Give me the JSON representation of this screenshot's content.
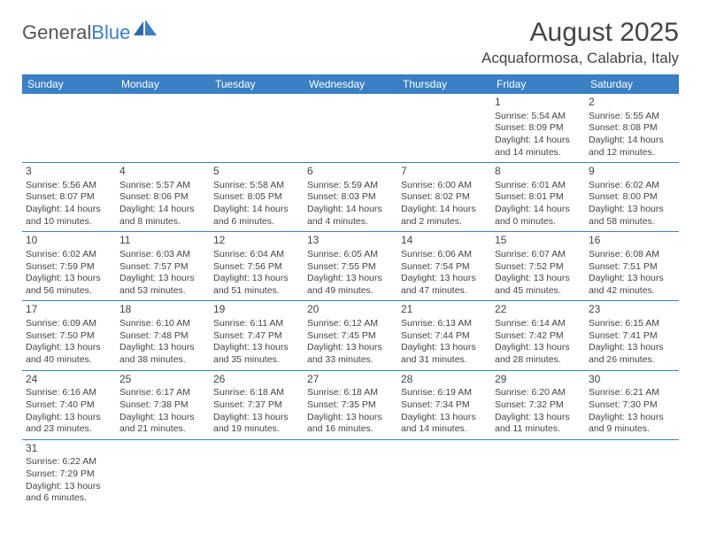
{
  "brand": {
    "part1": "General",
    "part2": "Blue"
  },
  "title": "August 2025",
  "location": "Acquaformosa, Calabria, Italy",
  "colors": {
    "primary": "#3b7fc4",
    "text": "#444444",
    "background": "#ffffff"
  },
  "daysOfWeek": [
    "Sunday",
    "Monday",
    "Tuesday",
    "Wednesday",
    "Thursday",
    "Friday",
    "Saturday"
  ],
  "weeks": [
    [
      null,
      null,
      null,
      null,
      null,
      {
        "num": "1",
        "sunrise": "Sunrise: 5:54 AM",
        "sunset": "Sunset: 8:09 PM",
        "daylight": "Daylight: 14 hours and 14 minutes."
      },
      {
        "num": "2",
        "sunrise": "Sunrise: 5:55 AM",
        "sunset": "Sunset: 8:08 PM",
        "daylight": "Daylight: 14 hours and 12 minutes."
      }
    ],
    [
      {
        "num": "3",
        "sunrise": "Sunrise: 5:56 AM",
        "sunset": "Sunset: 8:07 PM",
        "daylight": "Daylight: 14 hours and 10 minutes."
      },
      {
        "num": "4",
        "sunrise": "Sunrise: 5:57 AM",
        "sunset": "Sunset: 8:06 PM",
        "daylight": "Daylight: 14 hours and 8 minutes."
      },
      {
        "num": "5",
        "sunrise": "Sunrise: 5:58 AM",
        "sunset": "Sunset: 8:05 PM",
        "daylight": "Daylight: 14 hours and 6 minutes."
      },
      {
        "num": "6",
        "sunrise": "Sunrise: 5:59 AM",
        "sunset": "Sunset: 8:03 PM",
        "daylight": "Daylight: 14 hours and 4 minutes."
      },
      {
        "num": "7",
        "sunrise": "Sunrise: 6:00 AM",
        "sunset": "Sunset: 8:02 PM",
        "daylight": "Daylight: 14 hours and 2 minutes."
      },
      {
        "num": "8",
        "sunrise": "Sunrise: 6:01 AM",
        "sunset": "Sunset: 8:01 PM",
        "daylight": "Daylight: 14 hours and 0 minutes."
      },
      {
        "num": "9",
        "sunrise": "Sunrise: 6:02 AM",
        "sunset": "Sunset: 8:00 PM",
        "daylight": "Daylight: 13 hours and 58 minutes."
      }
    ],
    [
      {
        "num": "10",
        "sunrise": "Sunrise: 6:02 AM",
        "sunset": "Sunset: 7:59 PM",
        "daylight": "Daylight: 13 hours and 56 minutes."
      },
      {
        "num": "11",
        "sunrise": "Sunrise: 6:03 AM",
        "sunset": "Sunset: 7:57 PM",
        "daylight": "Daylight: 13 hours and 53 minutes."
      },
      {
        "num": "12",
        "sunrise": "Sunrise: 6:04 AM",
        "sunset": "Sunset: 7:56 PM",
        "daylight": "Daylight: 13 hours and 51 minutes."
      },
      {
        "num": "13",
        "sunrise": "Sunrise: 6:05 AM",
        "sunset": "Sunset: 7:55 PM",
        "daylight": "Daylight: 13 hours and 49 minutes."
      },
      {
        "num": "14",
        "sunrise": "Sunrise: 6:06 AM",
        "sunset": "Sunset: 7:54 PM",
        "daylight": "Daylight: 13 hours and 47 minutes."
      },
      {
        "num": "15",
        "sunrise": "Sunrise: 6:07 AM",
        "sunset": "Sunset: 7:52 PM",
        "daylight": "Daylight: 13 hours and 45 minutes."
      },
      {
        "num": "16",
        "sunrise": "Sunrise: 6:08 AM",
        "sunset": "Sunset: 7:51 PM",
        "daylight": "Daylight: 13 hours and 42 minutes."
      }
    ],
    [
      {
        "num": "17",
        "sunrise": "Sunrise: 6:09 AM",
        "sunset": "Sunset: 7:50 PM",
        "daylight": "Daylight: 13 hours and 40 minutes."
      },
      {
        "num": "18",
        "sunrise": "Sunrise: 6:10 AM",
        "sunset": "Sunset: 7:48 PM",
        "daylight": "Daylight: 13 hours and 38 minutes."
      },
      {
        "num": "19",
        "sunrise": "Sunrise: 6:11 AM",
        "sunset": "Sunset: 7:47 PM",
        "daylight": "Daylight: 13 hours and 35 minutes."
      },
      {
        "num": "20",
        "sunrise": "Sunrise: 6:12 AM",
        "sunset": "Sunset: 7:45 PM",
        "daylight": "Daylight: 13 hours and 33 minutes."
      },
      {
        "num": "21",
        "sunrise": "Sunrise: 6:13 AM",
        "sunset": "Sunset: 7:44 PM",
        "daylight": "Daylight: 13 hours and 31 minutes."
      },
      {
        "num": "22",
        "sunrise": "Sunrise: 6:14 AM",
        "sunset": "Sunset: 7:42 PM",
        "daylight": "Daylight: 13 hours and 28 minutes."
      },
      {
        "num": "23",
        "sunrise": "Sunrise: 6:15 AM",
        "sunset": "Sunset: 7:41 PM",
        "daylight": "Daylight: 13 hours and 26 minutes."
      }
    ],
    [
      {
        "num": "24",
        "sunrise": "Sunrise: 6:16 AM",
        "sunset": "Sunset: 7:40 PM",
        "daylight": "Daylight: 13 hours and 23 minutes."
      },
      {
        "num": "25",
        "sunrise": "Sunrise: 6:17 AM",
        "sunset": "Sunset: 7:38 PM",
        "daylight": "Daylight: 13 hours and 21 minutes."
      },
      {
        "num": "26",
        "sunrise": "Sunrise: 6:18 AM",
        "sunset": "Sunset: 7:37 PM",
        "daylight": "Daylight: 13 hours and 19 minutes."
      },
      {
        "num": "27",
        "sunrise": "Sunrise: 6:18 AM",
        "sunset": "Sunset: 7:35 PM",
        "daylight": "Daylight: 13 hours and 16 minutes."
      },
      {
        "num": "28",
        "sunrise": "Sunrise: 6:19 AM",
        "sunset": "Sunset: 7:34 PM",
        "daylight": "Daylight: 13 hours and 14 minutes."
      },
      {
        "num": "29",
        "sunrise": "Sunrise: 6:20 AM",
        "sunset": "Sunset: 7:32 PM",
        "daylight": "Daylight: 13 hours and 11 minutes."
      },
      {
        "num": "30",
        "sunrise": "Sunrise: 6:21 AM",
        "sunset": "Sunset: 7:30 PM",
        "daylight": "Daylight: 13 hours and 9 minutes."
      }
    ],
    [
      {
        "num": "31",
        "sunrise": "Sunrise: 6:22 AM",
        "sunset": "Sunset: 7:29 PM",
        "daylight": "Daylight: 13 hours and 6 minutes."
      },
      null,
      null,
      null,
      null,
      null,
      null
    ]
  ]
}
